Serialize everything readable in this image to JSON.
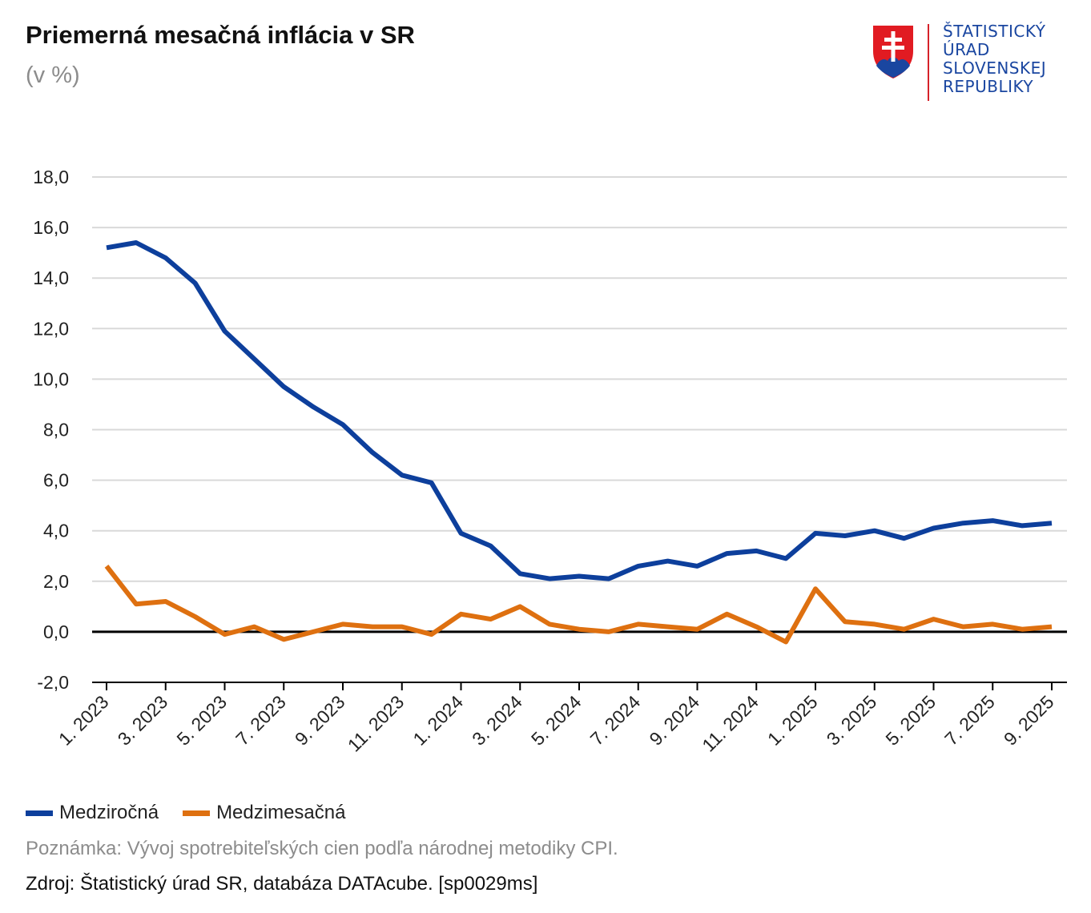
{
  "title": "Priemerná mesačná inflácia v SR",
  "subtitle": "(v %)",
  "logo": {
    "lines": [
      "ŠTATISTICKÝ",
      "ÚRAD",
      "SLOVENSKEJ",
      "REPUBLIKY"
    ],
    "icon": "slovak-coat-of-arms-icon",
    "text_color": "#1a46a0",
    "accent_color": "#d6222a"
  },
  "chart_data": {
    "type": "line",
    "x": [
      "1. 2023",
      "2. 2023",
      "3. 2023",
      "4. 2023",
      "5. 2023",
      "6. 2023",
      "7. 2023",
      "8. 2023",
      "9. 2023",
      "10. 2023",
      "11. 2023",
      "12. 2023",
      "1. 2024",
      "2. 2024",
      "3. 2024",
      "4. 2024",
      "5. 2024",
      "6. 2024",
      "7. 2024",
      "8. 2024",
      "9. 2024",
      "10. 2024",
      "11. 2024",
      "12. 2024",
      "1. 2025",
      "2. 2025",
      "3. 2025",
      "4. 2025",
      "5. 2025",
      "6. 2025",
      "7. 2025",
      "8. 2025",
      "9. 2025"
    ],
    "tick_labels": [
      "1. 2023",
      "3. 2023",
      "5. 2023",
      "7. 2023",
      "9. 2023",
      "11. 2023",
      "1. 2024",
      "3. 2024",
      "5. 2024",
      "7. 2024",
      "9. 2024",
      "11. 2024",
      "1. 2025",
      "3. 2025",
      "5. 2025",
      "7. 2025",
      "9. 2025"
    ],
    "series": [
      {
        "name": "Medziročná",
        "color": "#0d3f9c",
        "values": [
          15.2,
          15.4,
          14.8,
          13.8,
          11.9,
          10.8,
          9.7,
          8.9,
          8.2,
          7.1,
          6.2,
          5.9,
          3.9,
          3.4,
          2.3,
          2.1,
          2.2,
          2.1,
          2.6,
          2.8,
          2.6,
          3.1,
          3.2,
          2.9,
          3.9,
          3.8,
          4.0,
          3.7,
          4.1,
          4.3,
          4.4,
          4.2,
          4.3
        ]
      },
      {
        "name": "Medzimesačná",
        "color": "#de7010",
        "values": [
          2.6,
          1.1,
          1.2,
          0.6,
          -0.1,
          0.2,
          -0.3,
          0.0,
          0.3,
          0.2,
          0.2,
          -0.1,
          0.7,
          0.5,
          1.0,
          0.3,
          0.1,
          0.0,
          0.3,
          0.2,
          0.1,
          0.7,
          0.2,
          -0.4,
          1.7,
          0.4,
          0.3,
          0.1,
          0.5,
          0.2,
          0.3,
          0.1,
          0.2
        ]
      }
    ],
    "yticks": [
      "-2,0",
      "0,0",
      "2,0",
      "4,0",
      "6,0",
      "8,0",
      "10,0",
      "12,0",
      "14,0",
      "16,0",
      "18,0"
    ],
    "ylim": [
      -2,
      18
    ],
    "ystep": 2,
    "grid": true,
    "legend": "bottom-left"
  },
  "note": "Poznámka: Vývoj spotrebiteľských cien podľa národnej metodiky CPI.",
  "source": "Zdroj: Štatistický úrad SR, databáza DATAcube. [sp0029ms]"
}
